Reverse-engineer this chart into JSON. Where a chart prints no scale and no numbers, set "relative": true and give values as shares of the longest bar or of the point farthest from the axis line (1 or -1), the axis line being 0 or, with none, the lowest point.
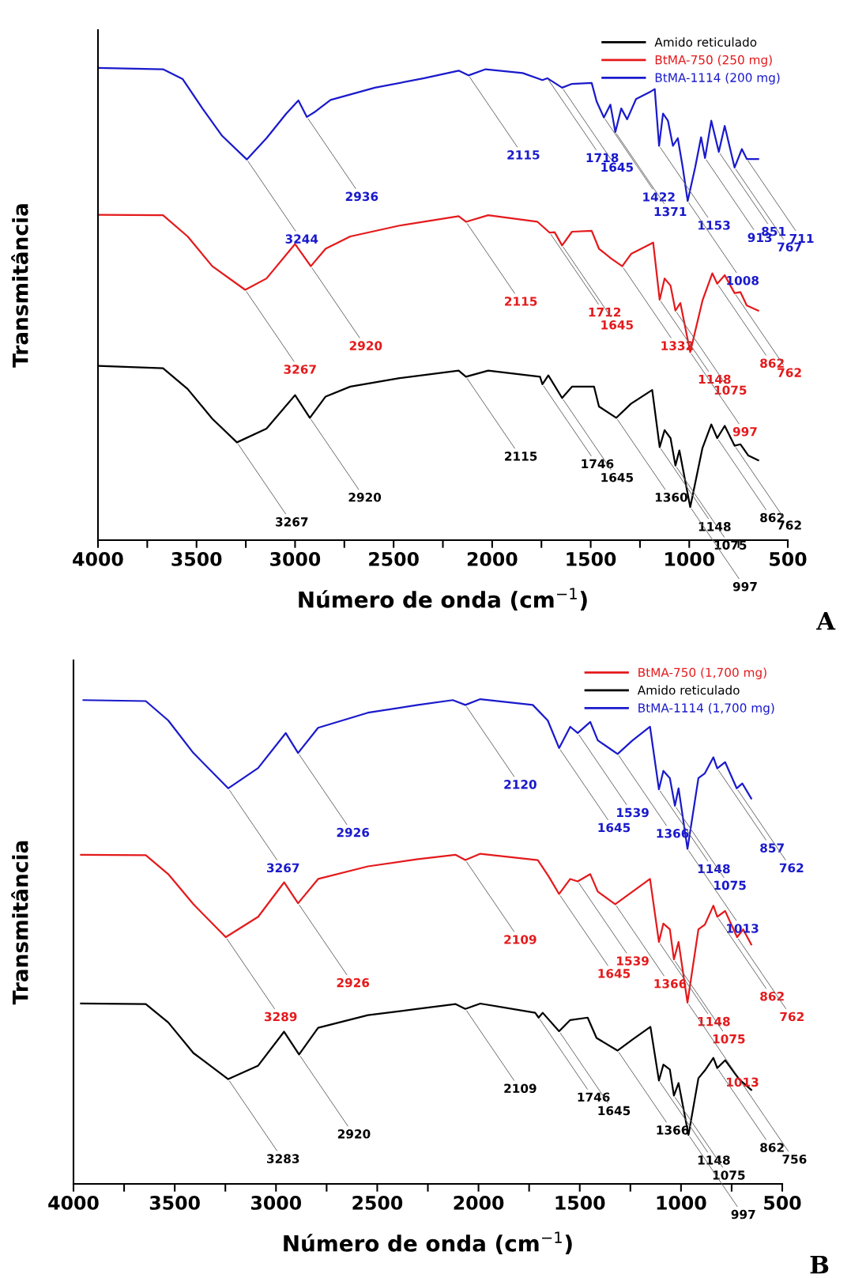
{
  "chart_data": [
    {
      "type": "line",
      "relative": true,
      "xlabel": "Número de onda (cm$^{−1}$)",
      "ylabel": "Transmitância",
      "xlim": [
        4000,
        500
      ],
      "xticks": [
        4000,
        {
          "value": 3750,
          "label": null
        },
        3500,
        {
          "value": 3250,
          "label": null
        },
        3000,
        {
          "value": 2750,
          "label": null
        },
        2500,
        {
          "value": 2250,
          "label": null
        },
        2000,
        {
          "value": 1750,
          "label": null
        },
        1500,
        {
          "value": 1250,
          "label": null
        },
        1000,
        {
          "value": 750,
          "label": null
        },
        500
      ],
      "grid": false,
      "legend": "top right",
      "marker": "none",
      "line_style": "solid",
      "series": [
        {
          "name": "Amido reticulado",
          "color": "#000000",
          "x": [
            4000,
            3670,
            3545,
            3420,
            3295,
            3145,
            3000,
            2925,
            2845,
            2720,
            2470,
            2170,
            2133,
            2020,
            1757,
            1745,
            1715,
            1645,
            1595,
            1483,
            1458,
            1370,
            1295,
            1188,
            1150,
            1125,
            1095,
            1070,
            1050,
            995,
            933,
            888,
            858,
            820,
            770,
            740,
            700,
            650
          ],
          "values": [
            0.369,
            0.364,
            0.32,
            0.257,
            0.207,
            0.236,
            0.307,
            0.259,
            0.304,
            0.325,
            0.343,
            0.359,
            0.346,
            0.359,
            0.346,
            0.33,
            0.349,
            0.301,
            0.325,
            0.325,
            0.283,
            0.259,
            0.289,
            0.318,
            0.197,
            0.233,
            0.216,
            0.158,
            0.19,
            0.07,
            0.195,
            0.245,
            0.216,
            0.242,
            0.2,
            0.203,
            0.179,
            0.169
          ]
        },
        {
          "name": "BtMA-750 (250 mg)",
          "color": "#e41a1c",
          "x": [
            4000,
            3670,
            3545,
            3420,
            3253,
            3145,
            3000,
            2920,
            2845,
            2720,
            2470,
            2170,
            2133,
            2020,
            1770,
            1708,
            1683,
            1645,
            1595,
            1495,
            1458,
            1395,
            1340,
            1295,
            1220,
            1183,
            1150,
            1125,
            1095,
            1070,
            1045,
            995,
            933,
            883,
            858,
            820,
            770,
            740,
            708,
            650
          ],
          "values": [
            0.689,
            0.688,
            0.643,
            0.58,
            0.53,
            0.554,
            0.627,
            0.58,
            0.617,
            0.643,
            0.666,
            0.686,
            0.674,
            0.688,
            0.674,
            0.651,
            0.652,
            0.624,
            0.653,
            0.655,
            0.617,
            0.596,
            0.58,
            0.606,
            0.622,
            0.63,
            0.509,
            0.554,
            0.539,
            0.486,
            0.502,
            0.398,
            0.507,
            0.565,
            0.543,
            0.561,
            0.523,
            0.525,
            0.497,
            0.486
          ]
        },
        {
          "name": "BtMA-1114 (200 mg)",
          "color": "#1a1acc",
          "x": [
            4000,
            3670,
            3570,
            3470,
            3370,
            3245,
            3145,
            3045,
            2983,
            2940,
            2895,
            2820,
            2595,
            2345,
            2170,
            2120,
            2033,
            1845,
            1745,
            1720,
            1645,
            1595,
            1495,
            1470,
            1433,
            1400,
            1375,
            1345,
            1315,
            1270,
            1195,
            1175,
            1153,
            1133,
            1108,
            1083,
            1058,
            1033,
            1008,
            970,
            940,
            920,
            888,
            850,
            820,
            770,
            733,
            708,
            650
          ],
          "values": [
            1.0,
            0.997,
            0.976,
            0.914,
            0.856,
            0.806,
            0.851,
            0.903,
            0.931,
            0.896,
            0.908,
            0.932,
            0.958,
            0.978,
            0.994,
            0.984,
            0.997,
            0.989,
            0.974,
            0.978,
            0.958,
            0.966,
            0.968,
            0.929,
            0.895,
            0.922,
            0.864,
            0.914,
            0.891,
            0.934,
            0.95,
            0.955,
            0.835,
            0.903,
            0.888,
            0.835,
            0.851,
            0.789,
            0.718,
            0.789,
            0.853,
            0.809,
            0.888,
            0.822,
            0.877,
            0.789,
            0.828,
            0.807,
            0.807
          ]
        }
      ],
      "annotations": [
        {
          "text": "3244",
          "x": 3245,
          "y": 0.806
        },
        {
          "text": "2936",
          "x": 2940,
          "y": 0.896
        },
        {
          "text": "2115",
          "x": 2120,
          "y": 0.984
        },
        {
          "text": "1718",
          "x": 1720,
          "y": 0.978
        },
        {
          "text": "1645",
          "x": 1645,
          "y": 0.958
        },
        {
          "text": "1422",
          "x": 1433,
          "y": 0.895
        },
        {
          "text": "1371",
          "x": 1375,
          "y": 0.864
        },
        {
          "text": "1153",
          "x": 1153,
          "y": 0.835
        },
        {
          "text": "1008",
          "x": 1008,
          "y": 0.718
        },
        {
          "text": "913",
          "x": 920,
          "y": 0.809
        },
        {
          "text": "851",
          "x": 850,
          "y": 0.822
        },
        {
          "text": "767",
          "x": 770,
          "y": 0.789
        },
        {
          "text": "711",
          "x": 708,
          "y": 0.807
        },
        {
          "text": "3267",
          "x": 3253,
          "y": 0.53
        },
        {
          "text": "2920",
          "x": 2920,
          "y": 0.58
        },
        {
          "text": "2115",
          "x": 2133,
          "y": 0.674
        },
        {
          "text": "1712",
          "x": 1708,
          "y": 0.651
        },
        {
          "text": "1645",
          "x": 1645,
          "y": 0.624
        },
        {
          "text": "1332",
          "x": 1340,
          "y": 0.58
        },
        {
          "text": "1148",
          "x": 1150,
          "y": 0.509
        },
        {
          "text": "1075",
          "x": 1070,
          "y": 0.486
        },
        {
          "text": "997",
          "x": 995,
          "y": 0.398
        },
        {
          "text": "862",
          "x": 858,
          "y": 0.543
        },
        {
          "text": "762",
          "x": 770,
          "y": 0.523
        },
        {
          "text": "3267",
          "x": 3295,
          "y": 0.207
        },
        {
          "text": "2920",
          "x": 2925,
          "y": 0.259
        },
        {
          "text": "2115",
          "x": 2133,
          "y": 0.346
        },
        {
          "text": "1746",
          "x": 1745,
          "y": 0.33
        },
        {
          "text": "1645",
          "x": 1645,
          "y": 0.301
        },
        {
          "text": "1360",
          "x": 1370,
          "y": 0.259
        },
        {
          "text": "1148",
          "x": 1150,
          "y": 0.197
        },
        {
          "text": "1075",
          "x": 1070,
          "y": 0.158
        },
        {
          "text": "997",
          "x": 995,
          "y": 0.07
        },
        {
          "text": "862",
          "x": 858,
          "y": 0.216
        },
        {
          "text": "762",
          "x": 770,
          "y": 0.2
        },
        "A"
      ]
    },
    {
      "type": "line",
      "relative": true,
      "xlabel": "Número de onda (cm$^{−1}$)",
      "ylabel": "Transmitância",
      "xlim": [
        4000,
        500
      ],
      "xticks": [
        4000,
        {
          "value": 3750,
          "label": null
        },
        3500,
        {
          "value": 3250,
          "label": null
        },
        3000,
        {
          "value": 2750,
          "label": null
        },
        2500,
        {
          "value": 2250,
          "label": null
        },
        2000,
        {
          "value": 1750,
          "label": null
        },
        1500,
        {
          "value": 1250,
          "label": null
        },
        1000,
        {
          "value": 750,
          "label": null
        },
        500
      ],
      "grid": false,
      "legend": "top right",
      "marker": "none",
      "line_style": "solid",
      "series": [
        {
          "name": "BtMA-750 (1,700 mg)",
          "color": "#e41a1c",
          "x": [
            3963,
            3643,
            3532,
            3408,
            3248,
            3088,
            2960,
            2891,
            2792,
            2546,
            2299,
            2114,
            2065,
            1991,
            1707,
            1653,
            1602,
            1547,
            1510,
            1448,
            1411,
            1325,
            1239,
            1153,
            1109,
            1087,
            1055,
            1035,
            1012,
            968,
            914,
            882,
            840,
            821,
            782,
            723,
            693,
            653
          ],
          "values": [
            0.679,
            0.678,
            0.639,
            0.577,
            0.509,
            0.551,
            0.622,
            0.579,
            0.629,
            0.655,
            0.67,
            0.679,
            0.668,
            0.681,
            0.668,
            0.634,
            0.598,
            0.629,
            0.624,
            0.639,
            0.603,
            0.577,
            0.603,
            0.629,
            0.499,
            0.537,
            0.525,
            0.463,
            0.499,
            0.374,
            0.525,
            0.535,
            0.574,
            0.551,
            0.563,
            0.509,
            0.525,
            0.494
          ]
        },
        {
          "name": "Amido reticulado",
          "color": "#000000",
          "x": [
            3963,
            3643,
            3532,
            3408,
            3236,
            3088,
            2960,
            2886,
            2792,
            2546,
            2299,
            2114,
            2065,
            1991,
            1720,
            1703,
            1683,
            1602,
            1547,
            1461,
            1417,
            1313,
            1239,
            1151,
            1109,
            1087,
            1055,
            1035,
            1012,
            963,
            914,
            882,
            840,
            821,
            782,
            711,
            653
          ],
          "values": [
            0.372,
            0.371,
            0.333,
            0.27,
            0.216,
            0.244,
            0.314,
            0.267,
            0.322,
            0.348,
            0.361,
            0.371,
            0.361,
            0.372,
            0.353,
            0.343,
            0.353,
            0.315,
            0.338,
            0.343,
            0.301,
            0.275,
            0.298,
            0.324,
            0.213,
            0.246,
            0.236,
            0.182,
            0.208,
            0.101,
            0.218,
            0.234,
            0.26,
            0.239,
            0.255,
            0.215,
            0.194
          ]
        },
        {
          "name": "BtMA-1114 (1,700 mg)",
          "color": "#1a1acc",
          "x": [
            3951,
            3643,
            3532,
            3408,
            3236,
            3088,
            2952,
            2891,
            2792,
            2546,
            2299,
            2127,
            2065,
            1991,
            1732,
            1658,
            1602,
            1547,
            1510,
            1448,
            1411,
            1338,
            1313,
            1239,
            1153,
            1109,
            1087,
            1055,
            1030,
            1012,
            968,
            914,
            882,
            840,
            821,
            782,
            725,
            697,
            653
          ],
          "values": [
            0.998,
            0.996,
            0.956,
            0.889,
            0.816,
            0.858,
            0.93,
            0.889,
            0.941,
            0.972,
            0.988,
            0.998,
            0.988,
            1.0,
            0.988,
            0.956,
            0.899,
            0.943,
            0.93,
            0.953,
            0.915,
            0.894,
            0.887,
            0.915,
            0.943,
            0.814,
            0.852,
            0.837,
            0.78,
            0.816,
            0.691,
            0.837,
            0.847,
            0.88,
            0.857,
            0.87,
            0.816,
            0.826,
            0.795
          ]
        }
      ],
      "annotations": [
        {
          "text": "3267",
          "x": 3236,
          "y": 0.816
        },
        {
          "text": "2926",
          "x": 2891,
          "y": 0.889
        },
        {
          "text": "2120",
          "x": 2065,
          "y": 0.988
        },
        {
          "text": "1645",
          "x": 1602,
          "y": 0.899
        },
        {
          "text": "1539",
          "x": 1510,
          "y": 0.93
        },
        {
          "text": "1366",
          "x": 1313,
          "y": 0.887
        },
        {
          "text": "1148",
          "x": 1109,
          "y": 0.814
        },
        {
          "text": "1075",
          "x": 1030,
          "y": 0.78
        },
        {
          "text": "1013",
          "x": 968,
          "y": 0.691
        },
        {
          "text": "857",
          "x": 821,
          "y": 0.857
        },
        {
          "text": "762",
          "x": 725,
          "y": 0.816
        },
        {
          "text": "3289",
          "x": 3248,
          "y": 0.509
        },
        {
          "text": "2926",
          "x": 2891,
          "y": 0.579
        },
        {
          "text": "2109",
          "x": 2065,
          "y": 0.668
        },
        {
          "text": "1645",
          "x": 1602,
          "y": 0.598
        },
        {
          "text": "1539",
          "x": 1510,
          "y": 0.624
        },
        {
          "text": "1366",
          "x": 1325,
          "y": 0.577
        },
        {
          "text": "1148",
          "x": 1109,
          "y": 0.499
        },
        {
          "text": "1075",
          "x": 1035,
          "y": 0.463
        },
        {
          "text": "1013",
          "x": 968,
          "y": 0.374
        },
        {
          "text": "862",
          "x": 821,
          "y": 0.551
        },
        {
          "text": "762",
          "x": 723,
          "y": 0.509
        },
        {
          "text": "3283",
          "x": 3236,
          "y": 0.216
        },
        {
          "text": "2920",
          "x": 2886,
          "y": 0.267
        },
        {
          "text": "2109",
          "x": 2065,
          "y": 0.361
        },
        {
          "text": "1746",
          "x": 1703,
          "y": 0.343
        },
        {
          "text": "1645",
          "x": 1602,
          "y": 0.315
        },
        {
          "text": "1366",
          "x": 1313,
          "y": 0.275
        },
        {
          "text": "1148",
          "x": 1109,
          "y": 0.213
        },
        {
          "text": "1075",
          "x": 1035,
          "y": 0.182
        },
        {
          "text": "997",
          "x": 963,
          "y": 0.101
        },
        {
          "text": "862",
          "x": 821,
          "y": 0.239
        },
        {
          "text": "756",
          "x": 711,
          "y": 0.215
        },
        "B"
      ]
    }
  ]
}
